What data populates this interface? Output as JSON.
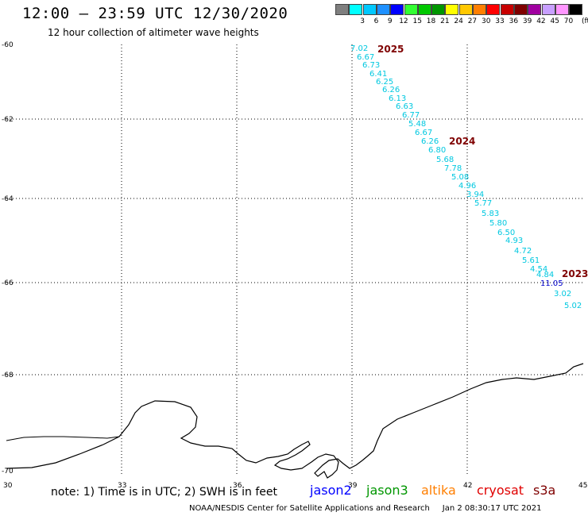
{
  "header": {
    "title": "12:00 – 23:59 UTC 12/30/2020",
    "subtitle": "12 hour collection of altimeter wave heights"
  },
  "color_scale": {
    "unit": "(ft)",
    "bins": [
      {
        "label": "",
        "color": "#7f7f7f"
      },
      {
        "label": "3",
        "color": "#00ffff"
      },
      {
        "label": "6",
        "color": "#00c8ff"
      },
      {
        "label": "9",
        "color": "#1e90ff"
      },
      {
        "label": "12",
        "color": "#0000ff"
      },
      {
        "label": "15",
        "color": "#32ff32"
      },
      {
        "label": "18",
        "color": "#00c800"
      },
      {
        "label": "21",
        "color": "#009600"
      },
      {
        "label": "24",
        "color": "#ffff00"
      },
      {
        "label": "27",
        "color": "#ffc800"
      },
      {
        "label": "30",
        "color": "#ff7f00"
      },
      {
        "label": "33",
        "color": "#ff0000"
      },
      {
        "label": "36",
        "color": "#c80000"
      },
      {
        "label": "39",
        "color": "#7f0000"
      },
      {
        "label": "42",
        "color": "#a000a0"
      },
      {
        "label": "45",
        "color": "#c8a0ff"
      },
      {
        "label": "70",
        "color": "#ff96ff"
      },
      {
        "label": "",
        "color": "#000000"
      }
    ]
  },
  "axes": {
    "lat_labels": [
      "-60",
      "-62",
      "-64",
      "-66",
      "-68",
      "-70"
    ],
    "lon_labels": [
      "30",
      "33",
      "36",
      "39",
      "42",
      "45"
    ]
  },
  "track": {
    "cyan_color": "#00c8e0",
    "blue_color": "#0000cc",
    "values": [
      "7.02",
      "6.67",
      "6.73",
      "6.41",
      "6.25",
      "6.26",
      "6.13",
      "6.63",
      "6.77",
      "5.48",
      "6.67",
      "6.26",
      "6.80",
      "5.68",
      "7.78",
      "5.08",
      "4.96",
      "3.94",
      "5.77",
      "5.83",
      "5.80",
      "6.50",
      "4.93",
      "4.72",
      "5.61",
      "4.54",
      "4.84",
      "11.05",
      "3.02",
      "5.02"
    ],
    "blue_value": "11.05",
    "years": [
      {
        "label": "2025",
        "color": "#7f0000"
      },
      {
        "label": "2024",
        "color": "#7f0000"
      },
      {
        "label": "2023",
        "color": "#7f0000"
      }
    ]
  },
  "footer": {
    "note": "note: 1) Time is in UTC; 2) SWH is in feet",
    "satellites": [
      {
        "name": "jason2",
        "color": "#0000ff"
      },
      {
        "name": "jason3",
        "color": "#009600"
      },
      {
        "name": "altika",
        "color": "#ff7f00"
      },
      {
        "name": "cryosat",
        "color": "#e00000"
      },
      {
        "name": "s3a",
        "color": "#7f0000"
      }
    ],
    "credit": "NOAA/NESDIS Center for Satellite Applications and Research",
    "timestamp": "Jan  2 08:30:17 UTC 2021"
  }
}
